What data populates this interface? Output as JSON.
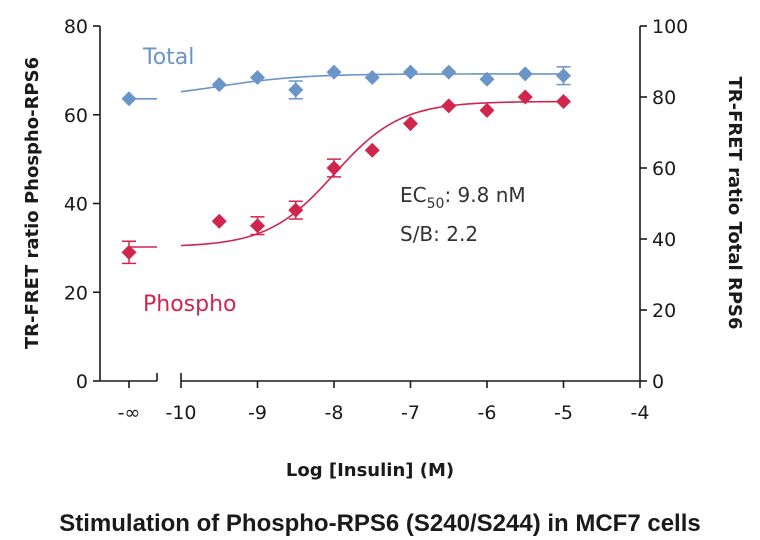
{
  "chart_data": {
    "type": "scatter",
    "caption": "Stimulation of Phospho-RPS6 (S240/S244) in MCF7 cells",
    "xlabel": "Log [Insulin] (M)",
    "ylabel_left": "TR-FRET ratio Phospho-RPS6",
    "ylabel_right": "TR-FRET ratio Total RPS6",
    "x_tick_labels": [
      "-∞",
      "-10",
      "-9",
      "-8",
      "-7",
      "-6",
      "-5",
      "-4"
    ],
    "x_ticks": [
      -10,
      -9,
      -8,
      -7,
      -6,
      -5,
      -4
    ],
    "x_break_after": "-∞",
    "xlim": [
      -10,
      -4
    ],
    "ylim_left": [
      0,
      80
    ],
    "y_ticks_left": [
      0,
      20,
      40,
      60,
      80
    ],
    "ylim_right": [
      0,
      100
    ],
    "y_ticks_right": [
      0,
      20,
      40,
      60,
      80,
      100
    ],
    "colors": {
      "total": "#6b95c9",
      "phospho": "#d0264e"
    },
    "series": [
      {
        "name": "Total",
        "axis": "right",
        "marker": "diamond",
        "baseline_x": "-∞",
        "baseline": {
          "y": 79.5,
          "err": 0
        },
        "points": [
          {
            "x": -9.5,
            "y": 83.5,
            "err": 0
          },
          {
            "x": -9.0,
            "y": 85.5,
            "err": 0
          },
          {
            "x": -8.5,
            "y": 82.0,
            "err": 2.5
          },
          {
            "x": -8.0,
            "y": 87.0,
            "err": 0
          },
          {
            "x": -7.5,
            "y": 85.5,
            "err": 0
          },
          {
            "x": -7.0,
            "y": 87.0,
            "err": 0
          },
          {
            "x": -6.5,
            "y": 87.0,
            "err": 0
          },
          {
            "x": -6.0,
            "y": 85.0,
            "err": 0
          },
          {
            "x": -5.5,
            "y": 86.5,
            "err": 0
          },
          {
            "x": -5.0,
            "y": 86.0,
            "err": 2.5
          }
        ]
      },
      {
        "name": "Phospho",
        "axis": "left",
        "marker": "diamond",
        "baseline_x": "-∞",
        "baseline": {
          "y": 29,
          "err": 2.5
        },
        "points": [
          {
            "x": -9.5,
            "y": 36,
            "err": 0
          },
          {
            "x": -9.0,
            "y": 35,
            "err": 2
          },
          {
            "x": -8.5,
            "y": 38.5,
            "err": 2
          },
          {
            "x": -8.0,
            "y": 48,
            "err": 2
          },
          {
            "x": -7.5,
            "y": 52,
            "err": 0
          },
          {
            "x": -7.0,
            "y": 58,
            "err": 0
          },
          {
            "x": -6.5,
            "y": 62,
            "err": 0
          },
          {
            "x": -6.0,
            "y": 61,
            "err": 0
          },
          {
            "x": -5.5,
            "y": 64,
            "err": 0
          },
          {
            "x": -5.0,
            "y": 63,
            "err": 0
          }
        ]
      }
    ],
    "fits": {
      "phospho": {
        "bottom": 30.2,
        "top": 63.0,
        "log_ec50": -8.0,
        "hill": 1.0
      },
      "total": {
        "bottom": 79.5,
        "top": 86.5,
        "log_ec50": -9.5,
        "hill": 0.8
      }
    },
    "annotations": {
      "ec50_prefix": "EC",
      "ec50_subscript": "50",
      "ec50_value": ": 9.8 nM",
      "sb": "S/B: 2.2"
    }
  }
}
